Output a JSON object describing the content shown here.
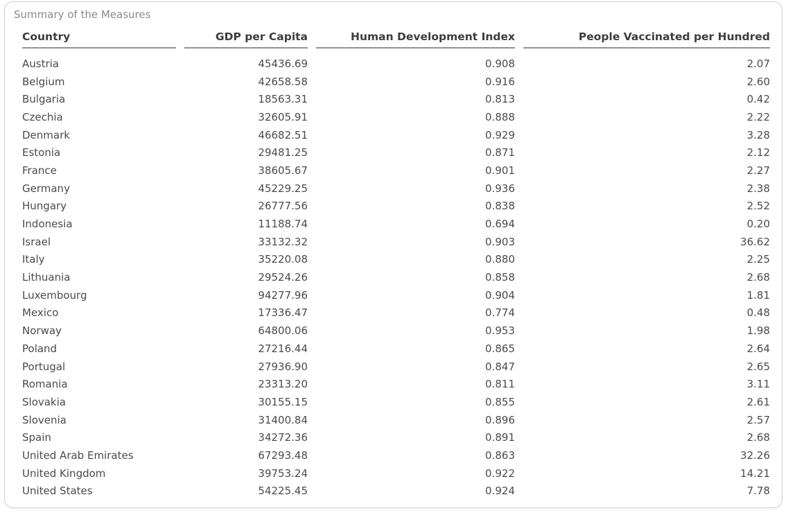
{
  "card": {
    "title": "Summary of the Measures"
  },
  "chart_data": {
    "type": "table",
    "title": "Summary of the Measures",
    "columns": [
      "Country",
      "GDP per Capita",
      "Human Development Index",
      "People Vaccinated per Hundred"
    ],
    "rows": [
      [
        "Austria",
        "45436.69",
        "0.908",
        "2.07"
      ],
      [
        "Belgium",
        "42658.58",
        "0.916",
        "2.60"
      ],
      [
        "Bulgaria",
        "18563.31",
        "0.813",
        "0.42"
      ],
      [
        "Czechia",
        "32605.91",
        "0.888",
        "2.22"
      ],
      [
        "Denmark",
        "46682.51",
        "0.929",
        "3.28"
      ],
      [
        "Estonia",
        "29481.25",
        "0.871",
        "2.12"
      ],
      [
        "France",
        "38605.67",
        "0.901",
        "2.27"
      ],
      [
        "Germany",
        "45229.25",
        "0.936",
        "2.38"
      ],
      [
        "Hungary",
        "26777.56",
        "0.838",
        "2.52"
      ],
      [
        "Indonesia",
        "11188.74",
        "0.694",
        "0.20"
      ],
      [
        "Israel",
        "33132.32",
        "0.903",
        "36.62"
      ],
      [
        "Italy",
        "35220.08",
        "0.880",
        "2.25"
      ],
      [
        "Lithuania",
        "29524.26",
        "0.858",
        "2.68"
      ],
      [
        "Luxembourg",
        "94277.96",
        "0.904",
        "1.81"
      ],
      [
        "Mexico",
        "17336.47",
        "0.774",
        "0.48"
      ],
      [
        "Norway",
        "64800.06",
        "0.953",
        "1.98"
      ],
      [
        "Poland",
        "27216.44",
        "0.865",
        "2.64"
      ],
      [
        "Portugal",
        "27936.90",
        "0.847",
        "2.65"
      ],
      [
        "Romania",
        "23313.20",
        "0.811",
        "3.11"
      ],
      [
        "Slovakia",
        "30155.15",
        "0.855",
        "2.61"
      ],
      [
        "Slovenia",
        "31400.84",
        "0.896",
        "2.57"
      ],
      [
        "Spain",
        "34272.36",
        "0.891",
        "2.68"
      ],
      [
        "United Arab Emirates",
        "67293.48",
        "0.863",
        "32.26"
      ],
      [
        "United Kingdom",
        "39753.24",
        "0.922",
        "14.21"
      ],
      [
        "United States",
        "54225.45",
        "0.924",
        "7.78"
      ]
    ],
    "layout": {
      "column_alignments": [
        "left",
        "right",
        "right",
        "right"
      ],
      "grid": "header-underline-only",
      "legend": "none"
    },
    "colors": {
      "title_text": "#8a8a8a",
      "header_text": "#3d3d3d",
      "body_text": "#4a4a4a",
      "header_rule": "#929292",
      "card_border": "#d0d0d0",
      "background": "#ffffff"
    }
  }
}
